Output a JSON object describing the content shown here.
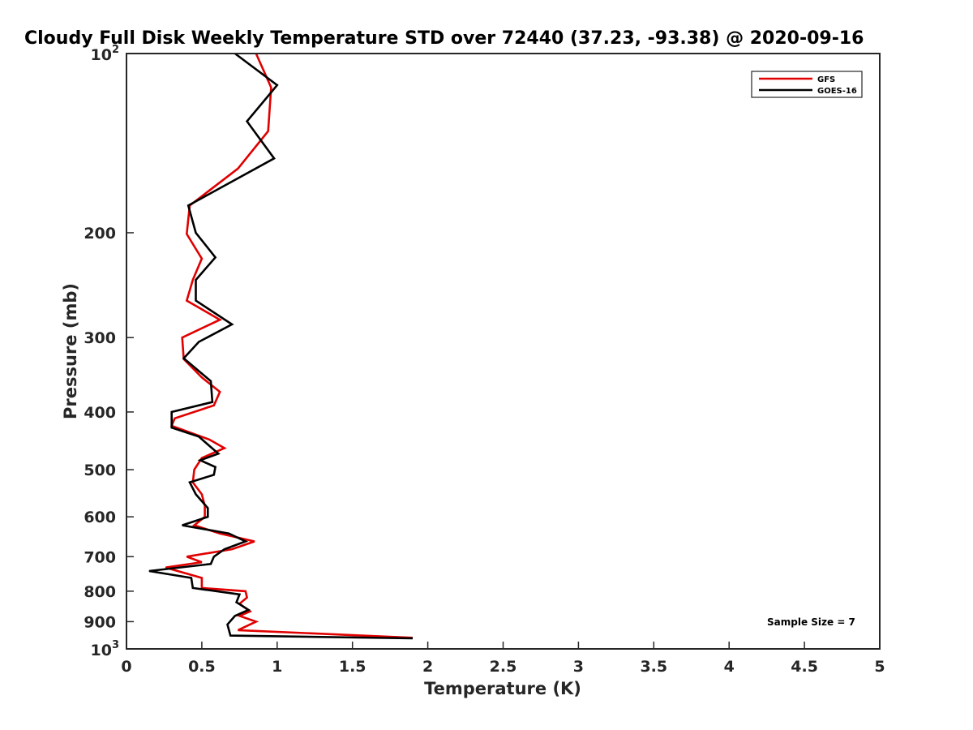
{
  "chart_data": {
    "type": "line",
    "title": "Cloudy Full Disk Weekly Temperature STD over 72440 (37.23, -93.38) @ 2020-09-16",
    "xlabel": "Temperature (K)",
    "ylabel": "Pressure (mb)",
    "xlim": [
      0,
      5
    ],
    "ylim": [
      100,
      1000
    ],
    "y_scale": "log",
    "y_reversed": true,
    "grid": false,
    "legend_position": "top-right",
    "x_ticks": [
      "0",
      "0.5",
      "1",
      "1.5",
      "2",
      "2.5",
      "3",
      "3.5",
      "4",
      "4.5",
      "5"
    ],
    "y_ticks": [
      {
        "value": 100,
        "base": "10",
        "exp": "2"
      },
      {
        "value": 200,
        "label": "200"
      },
      {
        "value": 300,
        "label": "300"
      },
      {
        "value": 400,
        "label": "400"
      },
      {
        "value": 500,
        "label": "500"
      },
      {
        "value": 600,
        "label": "600"
      },
      {
        "value": 700,
        "label": "700"
      },
      {
        "value": 800,
        "label": "800"
      },
      {
        "value": 900,
        "label": "900"
      },
      {
        "value": 1000,
        "base": "10",
        "exp": "3"
      }
    ],
    "annotation": "Sample Size = 7",
    "series": [
      {
        "name": "GFS",
        "color": "#e00000",
        "points": [
          [
            0.86,
            100
          ],
          [
            0.96,
            114
          ],
          [
            0.94,
            135
          ],
          [
            0.74,
            156
          ],
          [
            0.42,
            180
          ],
          [
            0.4,
            201
          ],
          [
            0.5,
            221
          ],
          [
            0.44,
            240
          ],
          [
            0.4,
            260
          ],
          [
            0.62,
            280
          ],
          [
            0.37,
            300
          ],
          [
            0.38,
            326
          ],
          [
            0.5,
            350
          ],
          [
            0.62,
            370
          ],
          [
            0.58,
            390
          ],
          [
            0.32,
            410
          ],
          [
            0.3,
            422
          ],
          [
            0.55,
            445
          ],
          [
            0.65,
            460
          ],
          [
            0.5,
            478
          ],
          [
            0.45,
            500
          ],
          [
            0.44,
            525
          ],
          [
            0.5,
            550
          ],
          [
            0.52,
            575
          ],
          [
            0.52,
            600
          ],
          [
            0.45,
            620
          ],
          [
            0.62,
            640
          ],
          [
            0.85,
            660
          ],
          [
            0.7,
            680
          ],
          [
            0.4,
            700
          ],
          [
            0.5,
            715
          ],
          [
            0.26,
            730
          ],
          [
            0.5,
            760
          ],
          [
            0.5,
            790
          ],
          [
            0.79,
            800
          ],
          [
            0.8,
            820
          ],
          [
            0.75,
            840
          ],
          [
            0.82,
            865
          ],
          [
            0.75,
            880
          ],
          [
            0.86,
            900
          ],
          [
            0.8,
            915
          ],
          [
            0.74,
            930
          ],
          [
            1.9,
            958
          ]
        ]
      },
      {
        "name": "GOES-16",
        "color": "#000000",
        "points": [
          [
            0.72,
            100
          ],
          [
            1.0,
            113
          ],
          [
            0.8,
            130
          ],
          [
            0.98,
            150
          ],
          [
            0.41,
            180
          ],
          [
            0.46,
            200
          ],
          [
            0.59,
            220
          ],
          [
            0.46,
            240
          ],
          [
            0.46,
            260
          ],
          [
            0.7,
            285
          ],
          [
            0.48,
            305
          ],
          [
            0.38,
            325
          ],
          [
            0.56,
            355
          ],
          [
            0.57,
            385
          ],
          [
            0.3,
            400
          ],
          [
            0.3,
            425
          ],
          [
            0.48,
            440
          ],
          [
            0.61,
            470
          ],
          [
            0.49,
            482
          ],
          [
            0.59,
            495
          ],
          [
            0.58,
            510
          ],
          [
            0.42,
            525
          ],
          [
            0.46,
            550
          ],
          [
            0.54,
            580
          ],
          [
            0.54,
            600
          ],
          [
            0.37,
            620
          ],
          [
            0.68,
            640
          ],
          [
            0.79,
            660
          ],
          [
            0.65,
            680
          ],
          [
            0.58,
            700
          ],
          [
            0.56,
            720
          ],
          [
            0.15,
            740
          ],
          [
            0.43,
            760
          ],
          [
            0.44,
            790
          ],
          [
            0.75,
            810
          ],
          [
            0.73,
            835
          ],
          [
            0.81,
            860
          ],
          [
            0.72,
            880
          ],
          [
            0.67,
            910
          ],
          [
            0.69,
            950
          ],
          [
            1.9,
            960
          ]
        ]
      }
    ]
  }
}
